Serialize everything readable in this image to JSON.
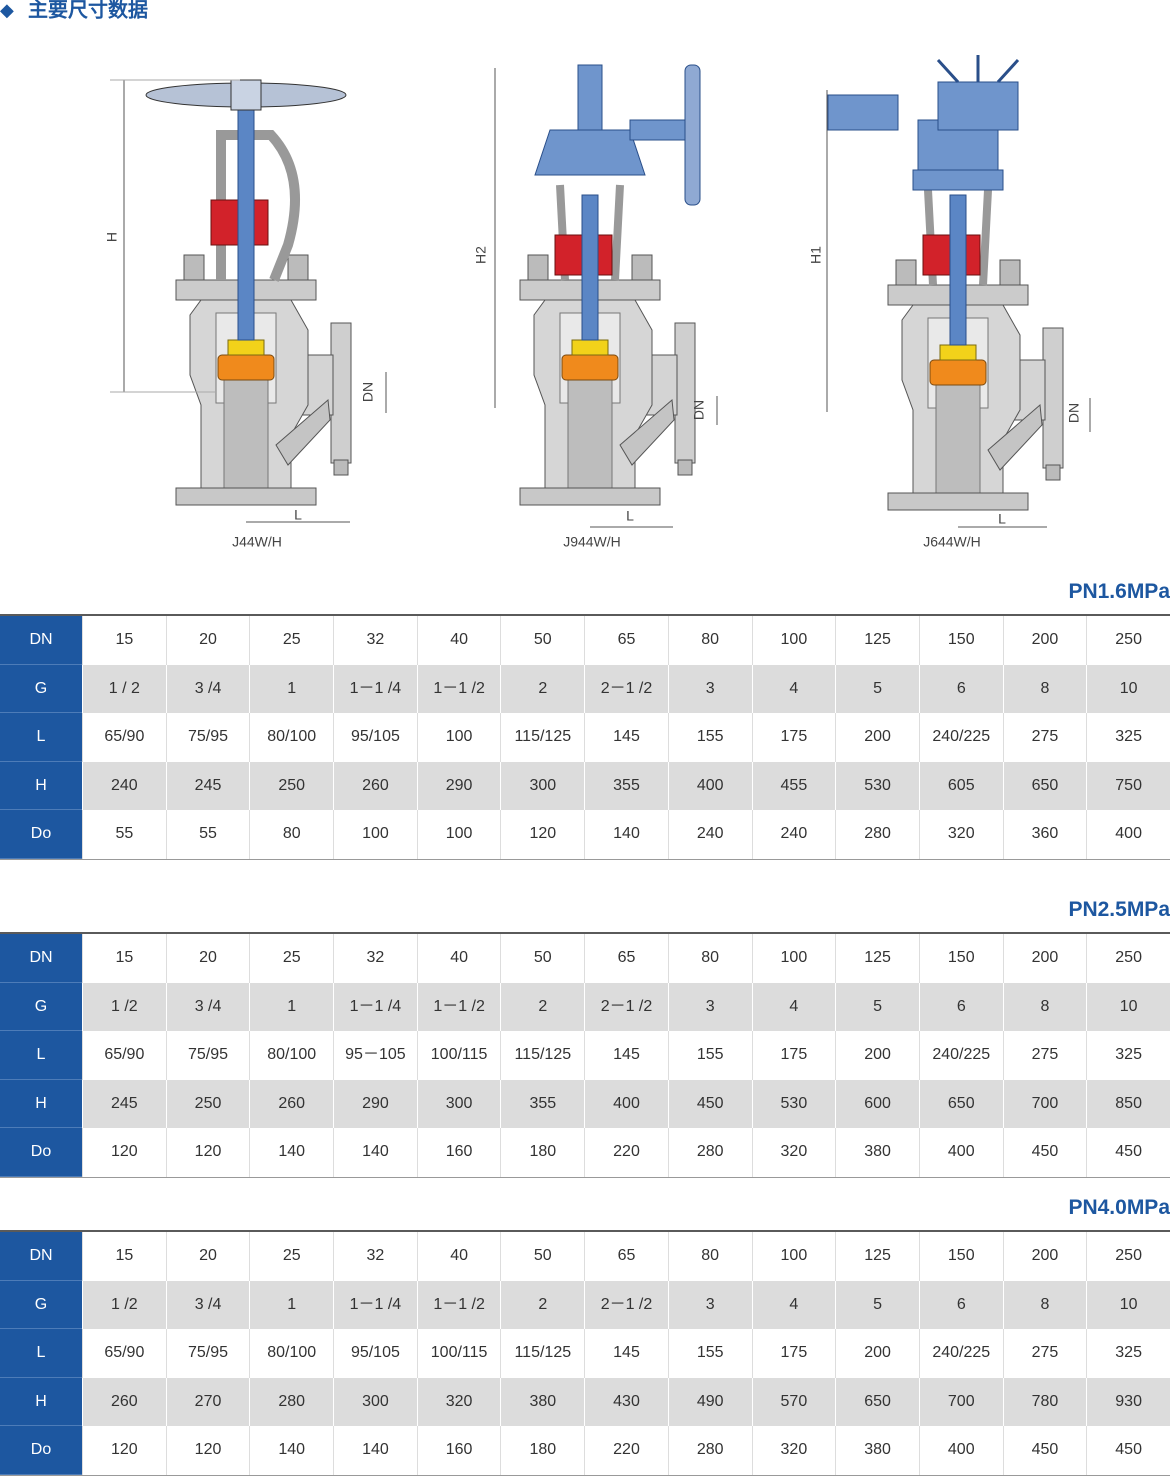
{
  "header": {
    "title": "主要尺寸数据"
  },
  "drawings": [
    {
      "model": "J44W/H",
      "height_label": "H",
      "dn_label": "DN",
      "length_label": "L"
    },
    {
      "model": "J944W/H",
      "height_label": "H2",
      "dn_label": "DN",
      "length_label": "L"
    },
    {
      "model": "J644W/H",
      "height_label": "H1",
      "dn_label": "DN",
      "length_label": "L"
    }
  ],
  "tables": [
    {
      "pressure": "PN1.6MPa",
      "rows": [
        {
          "label": "DN",
          "cells": [
            "15",
            "20",
            "25",
            "32",
            "40",
            "50",
            "65",
            "80",
            "100",
            "125",
            "150",
            "200",
            "250"
          ]
        },
        {
          "label": "G",
          "cells": [
            "1 / 2",
            "3 /4",
            "1",
            "1－1 /4",
            "1－1 /2",
            "2",
            "2－1 /2",
            "3",
            "4",
            "5",
            "6",
            "8",
            "10"
          ]
        },
        {
          "label": "L",
          "cells": [
            "65/90",
            "75/95",
            "80/100",
            "95/105",
            "100",
            "115/125",
            "145",
            "155",
            "175",
            "200",
            "240/225",
            "275",
            "325"
          ]
        },
        {
          "label": "H",
          "cells": [
            "240",
            "245",
            "250",
            "260",
            "290",
            "300",
            "355",
            "400",
            "455",
            "530",
            "605",
            "650",
            "750"
          ]
        },
        {
          "label": "Do",
          "cells": [
            "55",
            "55",
            "80",
            "100",
            "100",
            "120",
            "140",
            "240",
            "240",
            "280",
            "320",
            "360",
            "400"
          ]
        }
      ]
    },
    {
      "pressure": "PN2.5MPa",
      "rows": [
        {
          "label": "DN",
          "cells": [
            "15",
            "20",
            "25",
            "32",
            "40",
            "50",
            "65",
            "80",
            "100",
            "125",
            "150",
            "200",
            "250"
          ]
        },
        {
          "label": "G",
          "cells": [
            "1 /2",
            "3 /4",
            "1",
            "1－1 /4",
            "1－1 /2",
            "2",
            "2－1 /2",
            "3",
            "4",
            "5",
            "6",
            "8",
            "10"
          ]
        },
        {
          "label": "L",
          "cells": [
            "65/90",
            "75/95",
            "80/100",
            "95－105",
            "100/115",
            "115/125",
            "145",
            "155",
            "175",
            "200",
            "240/225",
            "275",
            "325"
          ]
        },
        {
          "label": "H",
          "cells": [
            "245",
            "250",
            "260",
            "290",
            "300",
            "355",
            "400",
            "450",
            "530",
            "600",
            "650",
            "700",
            "850"
          ]
        },
        {
          "label": "Do",
          "cells": [
            "120",
            "120",
            "140",
            "140",
            "160",
            "180",
            "220",
            "280",
            "320",
            "380",
            "400",
            "450",
            "450"
          ]
        }
      ]
    },
    {
      "pressure": "PN4.0MPa",
      "rows": [
        {
          "label": "DN",
          "cells": [
            "15",
            "20",
            "25",
            "32",
            "40",
            "50",
            "65",
            "80",
            "100",
            "125",
            "150",
            "200",
            "250"
          ]
        },
        {
          "label": "G",
          "cells": [
            "1 /2",
            "3 /4",
            "1",
            "1－1 /4",
            "1－1 /2",
            "2",
            "2－1 /2",
            "3",
            "4",
            "5",
            "6",
            "8",
            "10"
          ]
        },
        {
          "label": "L",
          "cells": [
            "65/90",
            "75/95",
            "80/100",
            "95/105",
            "100/115",
            "115/125",
            "145",
            "155",
            "175",
            "200",
            "240/225",
            "275",
            "325"
          ]
        },
        {
          "label": "H",
          "cells": [
            "260",
            "270",
            "280",
            "300",
            "320",
            "380",
            "430",
            "490",
            "570",
            "650",
            "700",
            "780",
            "930"
          ]
        },
        {
          "label": "Do",
          "cells": [
            "120",
            "120",
            "140",
            "140",
            "160",
            "180",
            "220",
            "280",
            "320",
            "380",
            "400",
            "450",
            "450"
          ]
        }
      ]
    }
  ]
}
